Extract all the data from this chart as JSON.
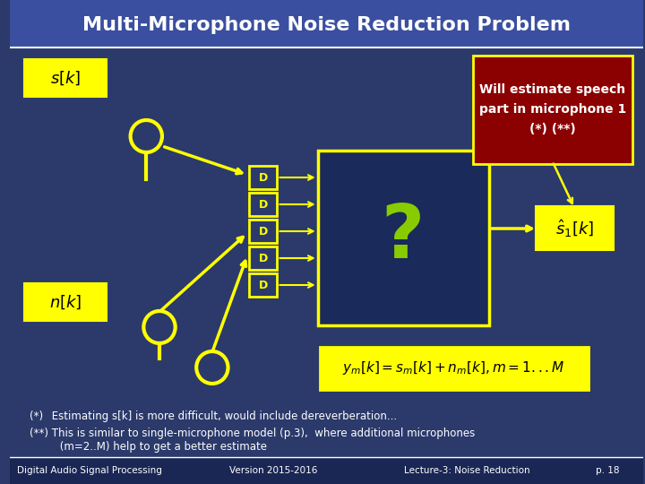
{
  "title": "Multi-Microphone Noise Reduction Problem",
  "bg_color": "#2B3A6B",
  "title_bg": "#3B4FA0",
  "title_color": "#FFFFFF",
  "yellow": "#FFFF00",
  "dark_yellow": "#CCCC00",
  "red_box": "#8B0000",
  "footer_bg": "#1A2755",
  "footer_texts": [
    "Digital Audio Signal Processing",
    "Version 2015-2016",
    "Lecture-3: Noise Reduction",
    "p. 18"
  ],
  "note1": "(*)  Estimating s[k] is more difficult, would include dereverberation...",
  "note2": "(**) This is similar to single-microphone model (p.3),  where additional microphones\n         (m=2..M) help to get a better estimate",
  "callout": "Will estimate speech\npart in microphone 1\n(*) (**)"
}
